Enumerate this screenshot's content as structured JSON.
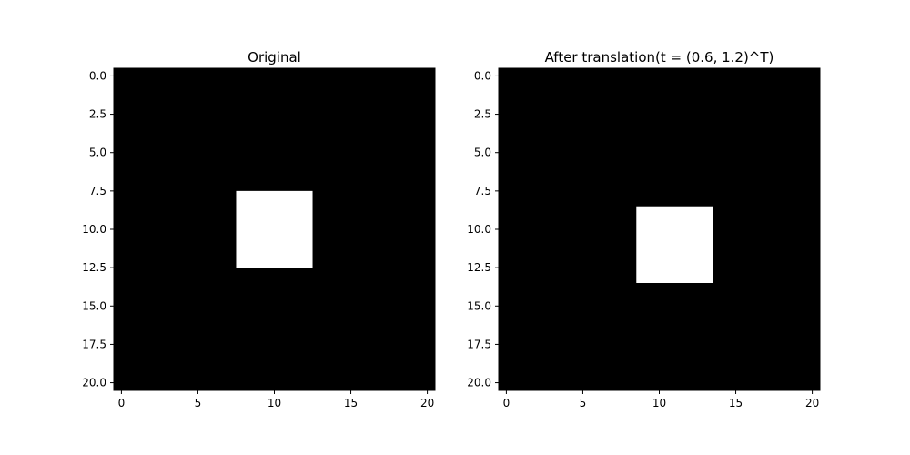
{
  "chart_data": [
    {
      "type": "heatmap",
      "title": "Original",
      "xlabel": "",
      "ylabel": "",
      "grid_size": [
        21,
        21
      ],
      "xlim": [
        -0.5,
        20.5
      ],
      "ylim": [
        20.5,
        -0.5
      ],
      "x_ticks": [
        0,
        5,
        10,
        15,
        20
      ],
      "x_tick_labels": [
        "0",
        "5",
        "10",
        "15",
        "20"
      ],
      "y_ticks": [
        0.0,
        2.5,
        5.0,
        7.5,
        10.0,
        12.5,
        15.0,
        17.5,
        20.0
      ],
      "y_tick_labels": [
        "0.0",
        "2.5",
        "5.0",
        "7.5",
        "10.0",
        "12.5",
        "15.0",
        "17.5",
        "20.0"
      ],
      "background_value": 0,
      "foreground_value": 1,
      "foreground_rows": [
        8,
        12
      ],
      "foreground_cols": [
        8,
        12
      ],
      "colormap": [
        "#000000",
        "#ffffff"
      ],
      "grid": false
    },
    {
      "type": "heatmap",
      "title": "After translation(t = (0.6, 1.2)^T)",
      "xlabel": "",
      "ylabel": "",
      "grid_size": [
        21,
        21
      ],
      "xlim": [
        -0.5,
        20.5
      ],
      "ylim": [
        20.5,
        -0.5
      ],
      "x_ticks": [
        0,
        5,
        10,
        15,
        20
      ],
      "x_tick_labels": [
        "0",
        "5",
        "10",
        "15",
        "20"
      ],
      "y_ticks": [
        0.0,
        2.5,
        5.0,
        7.5,
        10.0,
        12.5,
        15.0,
        17.5,
        20.0
      ],
      "y_tick_labels": [
        "0.0",
        "2.5",
        "5.0",
        "7.5",
        "10.0",
        "12.5",
        "15.0",
        "17.5",
        "20.0"
      ],
      "background_value": 0,
      "foreground_value": 1,
      "foreground_rows": [
        9,
        13
      ],
      "foreground_cols": [
        9,
        13
      ],
      "colormap": [
        "#000000",
        "#ffffff"
      ],
      "grid": false
    }
  ]
}
